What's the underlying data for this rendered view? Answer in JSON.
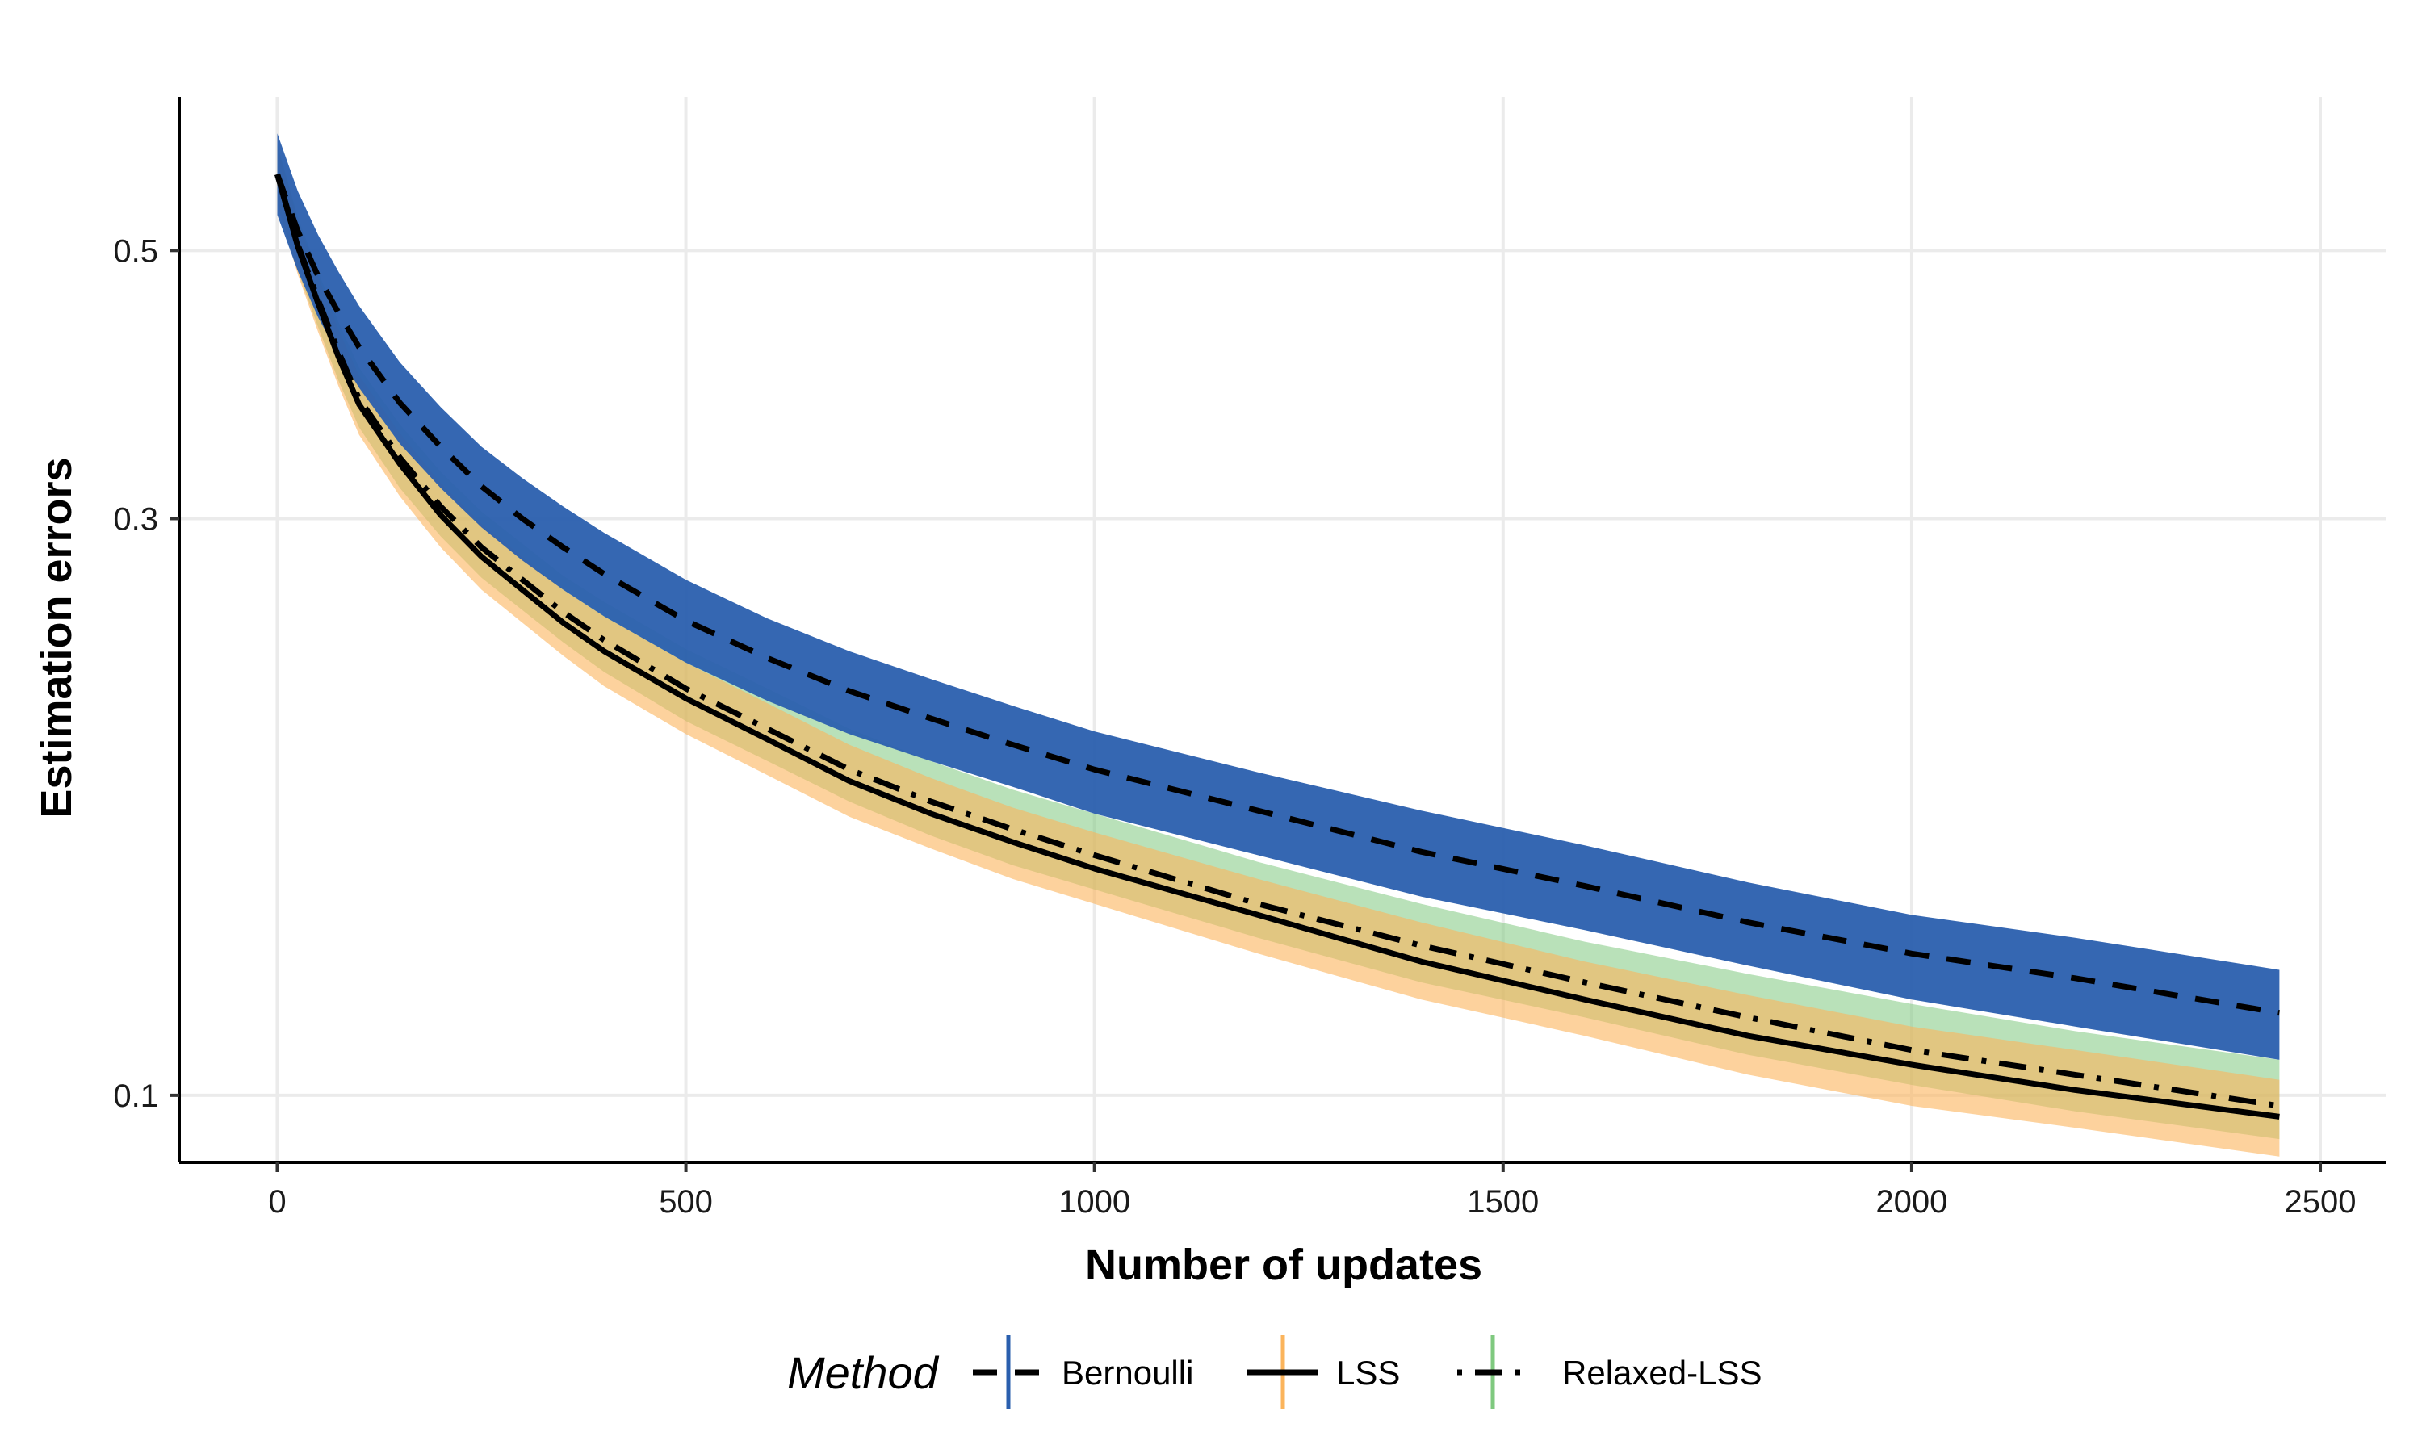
{
  "chart_data": {
    "type": "line",
    "title": "",
    "xlabel": "Number of updates",
    "ylabel": "Estimation errors",
    "y_scale": "log",
    "xlim": [
      -120,
      2580
    ],
    "ylim": [
      0.088,
      0.67
    ],
    "x_ticks": [
      0,
      500,
      1000,
      1500,
      2000,
      2500
    ],
    "x_tick_labels": [
      "0",
      "500",
      "1000",
      "1500",
      "2000",
      "2500"
    ],
    "y_ticks": [
      0.1,
      0.3,
      0.5
    ],
    "y_tick_labels": [
      "0.1",
      "0.3",
      "0.5"
    ],
    "grid": true,
    "legend": {
      "title": "Method",
      "position": "bottom"
    },
    "x": [
      0,
      25,
      50,
      75,
      100,
      150,
      200,
      250,
      300,
      350,
      400,
      500,
      600,
      700,
      800,
      900,
      1000,
      1200,
      1400,
      1600,
      1800,
      2000,
      2200,
      2450
    ],
    "series": [
      {
        "name": "Bernoulli",
        "line_style": "dashed",
        "band_color": "#2a5fae",
        "values": [
          0.578,
          0.519,
          0.476,
          0.444,
          0.416,
          0.374,
          0.344,
          0.319,
          0.3,
          0.284,
          0.27,
          0.247,
          0.23,
          0.216,
          0.205,
          0.195,
          0.186,
          0.172,
          0.159,
          0.149,
          0.139,
          0.131,
          0.125,
          0.117
        ],
        "lower": [
          0.535,
          0.481,
          0.44,
          0.41,
          0.385,
          0.346,
          0.318,
          0.295,
          0.277,
          0.262,
          0.249,
          0.228,
          0.212,
          0.199,
          0.189,
          0.18,
          0.171,
          0.158,
          0.146,
          0.137,
          0.128,
          0.12,
          0.114,
          0.107
        ],
        "upper": [
          0.625,
          0.56,
          0.515,
          0.48,
          0.45,
          0.404,
          0.371,
          0.344,
          0.324,
          0.307,
          0.292,
          0.267,
          0.248,
          0.233,
          0.221,
          0.21,
          0.2,
          0.185,
          0.172,
          0.161,
          0.15,
          0.141,
          0.135,
          0.127
        ]
      },
      {
        "name": "LSS",
        "line_style": "solid",
        "band_color": "#fbb45c",
        "values": [
          0.578,
          0.504,
          0.452,
          0.408,
          0.373,
          0.333,
          0.302,
          0.279,
          0.262,
          0.246,
          0.233,
          0.213,
          0.197,
          0.182,
          0.171,
          0.162,
          0.154,
          0.141,
          0.129,
          0.12,
          0.112,
          0.106,
          0.101,
          0.096
        ],
        "lower": [
          0.545,
          0.478,
          0.428,
          0.386,
          0.352,
          0.313,
          0.284,
          0.262,
          0.246,
          0.231,
          0.218,
          0.199,
          0.184,
          0.17,
          0.16,
          0.151,
          0.144,
          0.131,
          0.12,
          0.112,
          0.104,
          0.098,
          0.094,
          0.089
        ],
        "upper": [
          0.61,
          0.53,
          0.476,
          0.43,
          0.394,
          0.353,
          0.321,
          0.297,
          0.279,
          0.262,
          0.249,
          0.228,
          0.211,
          0.195,
          0.183,
          0.173,
          0.165,
          0.151,
          0.139,
          0.129,
          0.121,
          0.114,
          0.109,
          0.103
        ]
      },
      {
        "name": "Relaxed-LSS",
        "line_style": "dotdash",
        "band_color": "#7fc97f",
        "values": [
          0.578,
          0.506,
          0.455,
          0.412,
          0.377,
          0.337,
          0.307,
          0.284,
          0.267,
          0.251,
          0.238,
          0.217,
          0.201,
          0.186,
          0.175,
          0.166,
          0.158,
          0.144,
          0.133,
          0.124,
          0.116,
          0.109,
          0.104,
          0.098
        ],
        "lower": [
          0.548,
          0.481,
          0.432,
          0.39,
          0.357,
          0.318,
          0.29,
          0.268,
          0.252,
          0.237,
          0.224,
          0.204,
          0.189,
          0.175,
          0.164,
          0.155,
          0.148,
          0.135,
          0.124,
          0.116,
          0.108,
          0.102,
          0.097,
          0.092
        ],
        "upper": [
          0.612,
          0.533,
          0.48,
          0.436,
          0.4,
          0.359,
          0.328,
          0.304,
          0.286,
          0.269,
          0.256,
          0.234,
          0.217,
          0.201,
          0.189,
          0.179,
          0.171,
          0.156,
          0.144,
          0.134,
          0.126,
          0.119,
          0.113,
          0.107
        ]
      }
    ]
  }
}
